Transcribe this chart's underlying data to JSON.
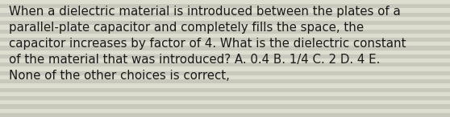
{
  "text": "When a dielectric material is introduced between the plates of a\nparallel-plate capacitor and completely fills the space, the\ncapacitor increases by factor of 4. What is the dielectric constant\nof the material that was introduced? A. 0.4 B. 1/4 C. 2 D. 4 E.\nNone of the other choices is correct,",
  "background_color": "#e8e8dc",
  "stripe_color_light": "#ddddd0",
  "stripe_color_dark": "#c8c8bc",
  "text_color": "#1a1a1a",
  "font_size": 10.8,
  "fig_width": 5.58,
  "fig_height": 1.46,
  "num_stripes": 28
}
